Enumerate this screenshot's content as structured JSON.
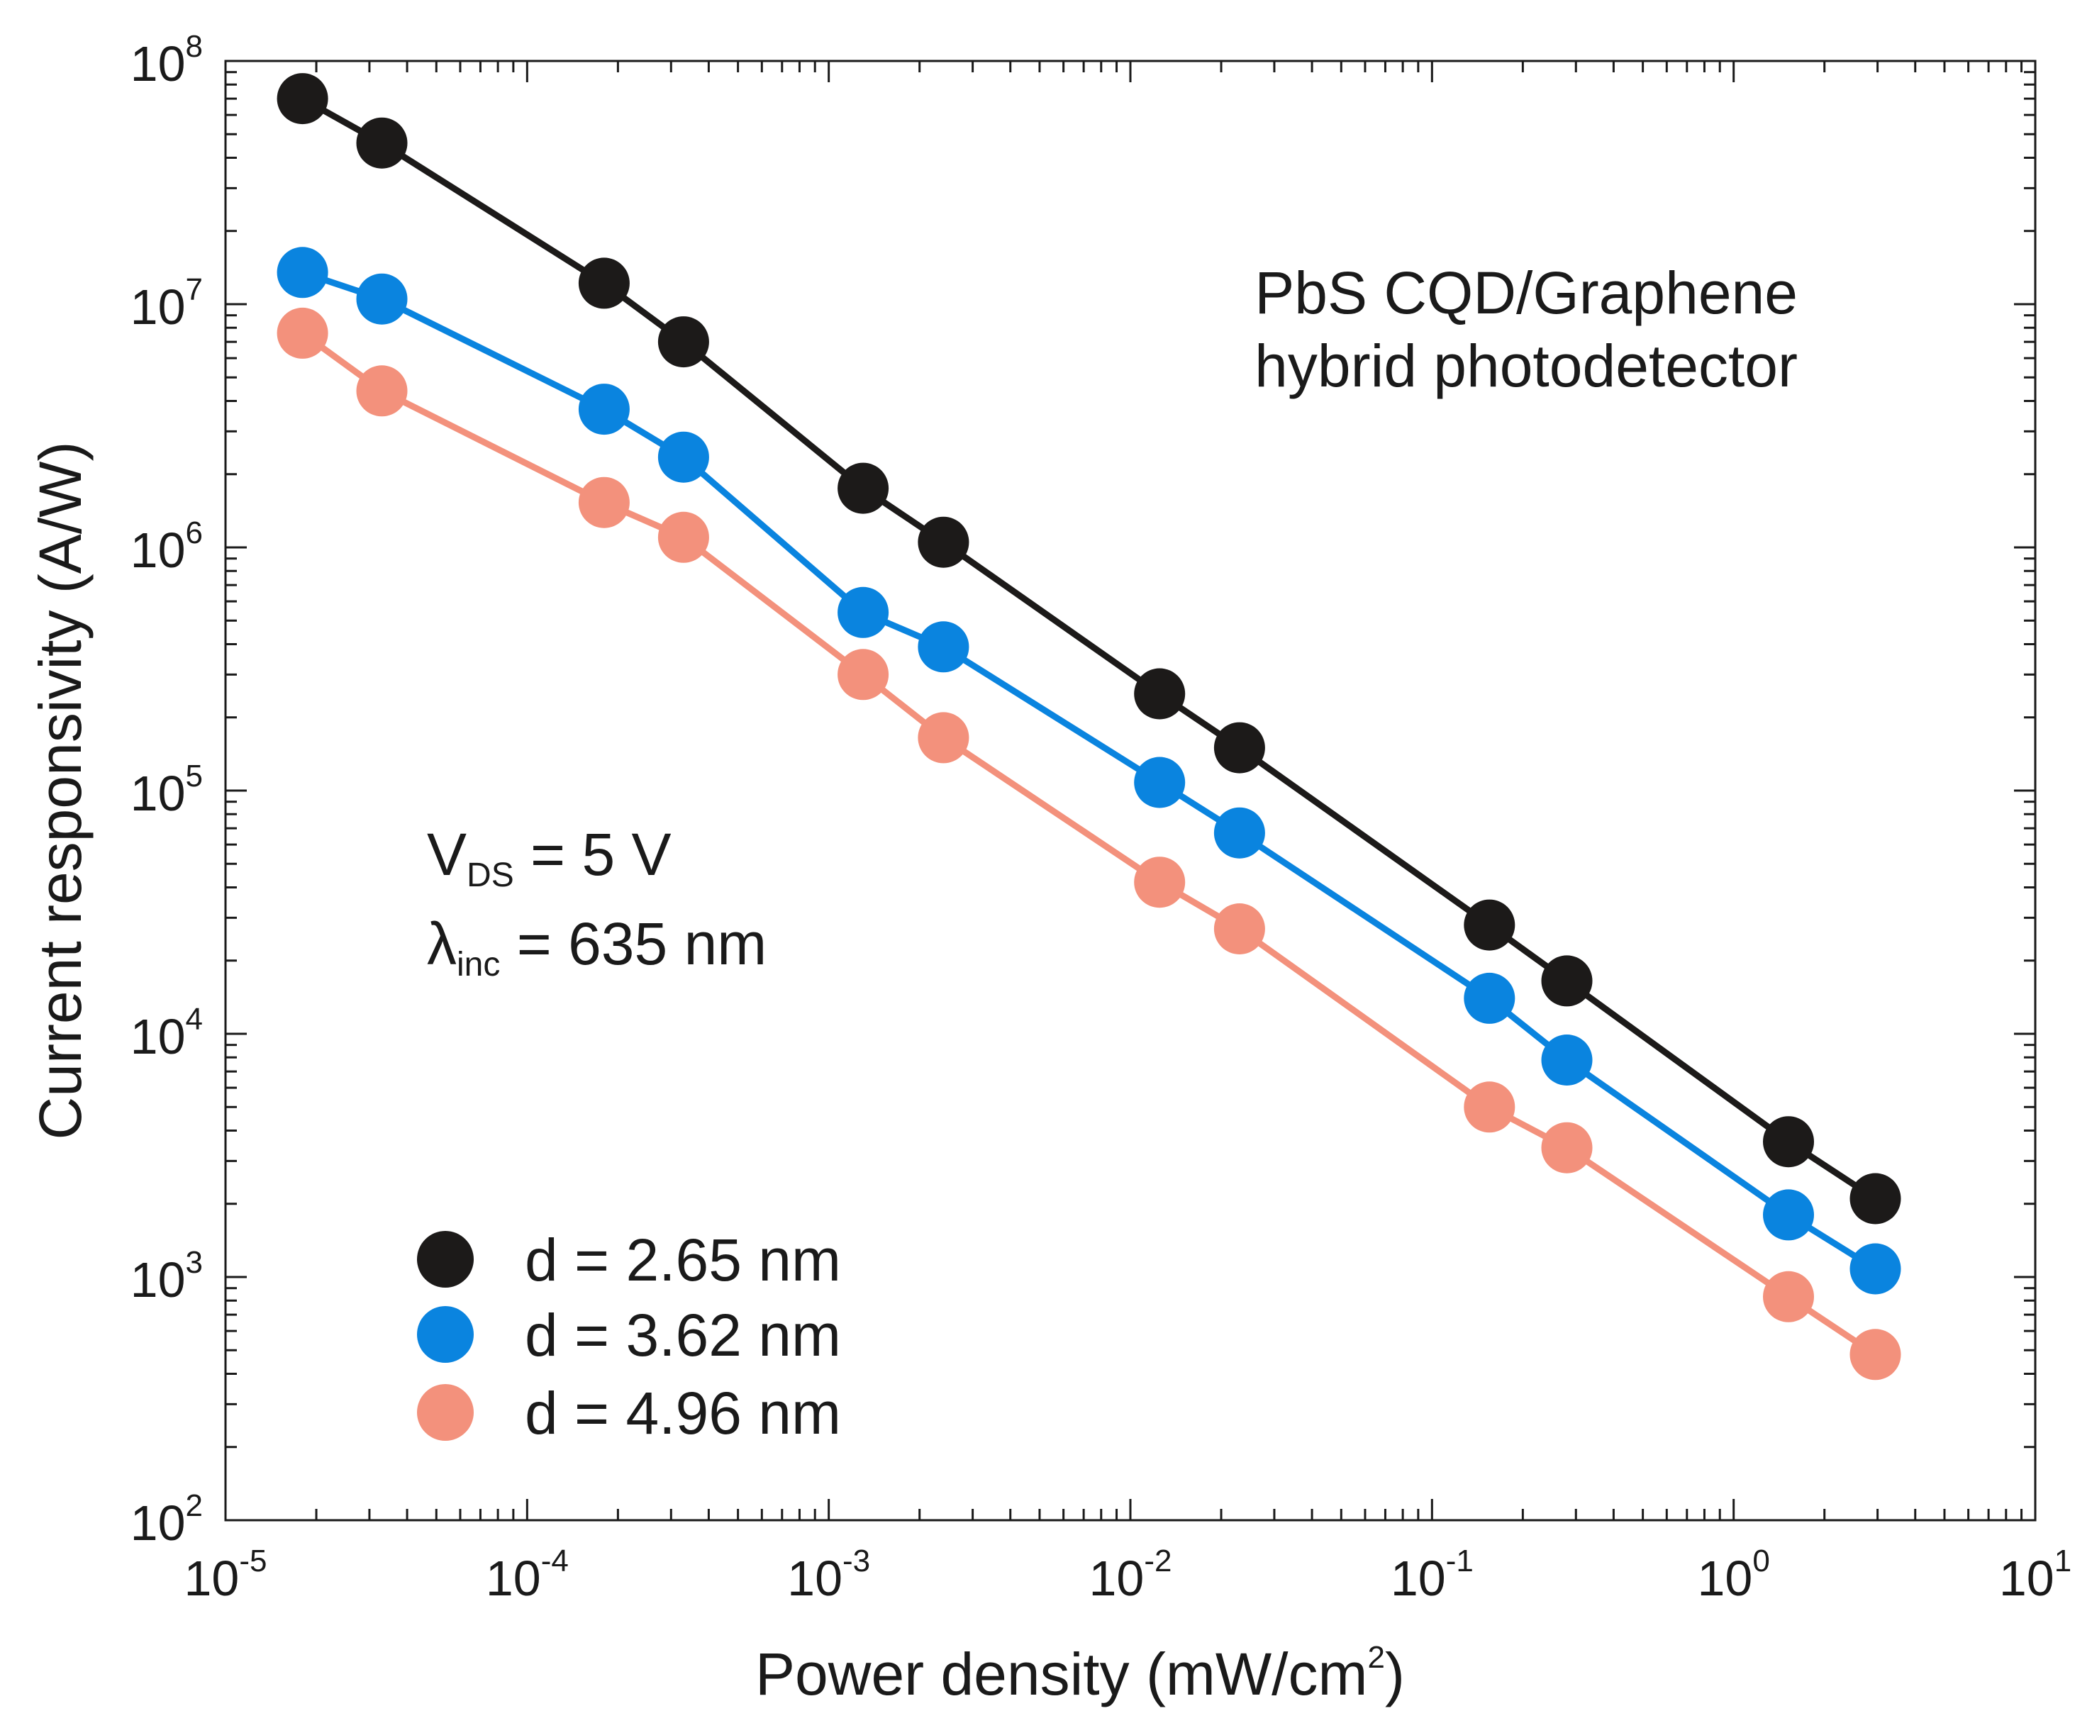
{
  "chart_data": {
    "type": "scatter",
    "title": "",
    "xscale": "log",
    "yscale": "log",
    "xlim": [
      1e-05,
      10
    ],
    "ylim": [
      100,
      100000000
    ],
    "xlabel": "Power density (mW/cm",
    "xlabel_sup": "2",
    "xlabel_end": ")",
    "ylabel": "Current responsivity (A/W)",
    "x_ticks": [
      {
        "base": "10",
        "exp": "-5"
      },
      {
        "base": "10",
        "exp": "-4"
      },
      {
        "base": "10",
        "exp": "-3"
      },
      {
        "base": "10",
        "exp": "-2"
      },
      {
        "base": "10",
        "exp": "-1"
      },
      {
        "base": "10",
        "exp": "0"
      },
      {
        "base": "10",
        "exp": "1"
      }
    ],
    "y_ticks": [
      {
        "base": "10",
        "exp": "2"
      },
      {
        "base": "10",
        "exp": "3"
      },
      {
        "base": "10",
        "exp": "4"
      },
      {
        "base": "10",
        "exp": "5"
      },
      {
        "base": "10",
        "exp": "6"
      },
      {
        "base": "10",
        "exp": "7"
      },
      {
        "base": "10",
        "exp": "8"
      }
    ],
    "legend_position": "bottom-left",
    "annotations": {
      "device_line1": "PbS CQD/Graphene",
      "device_line2": "hybrid photodetector",
      "vds_main": "V",
      "vds_sub": "DS",
      "vds_value": " = 5 V",
      "lambda_main": "λ",
      "lambda_sub": "inc",
      "lambda_value": " = 635 nm"
    },
    "series": [
      {
        "name": "d = 2.65 nm",
        "color": "#1c1a19",
        "x": [
          1.8e-05,
          3.3e-05,
          0.00018,
          0.00033,
          0.0013,
          0.0024,
          0.0125,
          0.023,
          0.155,
          0.28,
          1.52,
          2.95
        ],
        "y": [
          70000000,
          46000000,
          12200000,
          7000000,
          1750000,
          1050000,
          250000,
          150000,
          28000,
          16500,
          3600,
          2100
        ]
      },
      {
        "name": "d = 3.62 nm",
        "color": "#0a84df",
        "x": [
          1.8e-05,
          3.3e-05,
          0.00018,
          0.00033,
          0.0013,
          0.0024,
          0.0125,
          0.023,
          0.155,
          0.28,
          1.52,
          2.95
        ],
        "y": [
          13500000,
          10500000,
          3700000,
          2350000,
          540000,
          390000,
          108000,
          67000,
          14000,
          7800,
          1800,
          1080
        ]
      },
      {
        "name": "d = 4.96 nm",
        "color": "#f3917c",
        "x": [
          1.8e-05,
          3.3e-05,
          0.00018,
          0.00033,
          0.0013,
          0.0024,
          0.0125,
          0.023,
          0.155,
          0.28,
          1.52,
          2.95
        ],
        "y": [
          7600000,
          4400000,
          1530000,
          1100000,
          300000,
          165000,
          42000,
          27000,
          5000,
          3400,
          830,
          480
        ]
      }
    ]
  }
}
